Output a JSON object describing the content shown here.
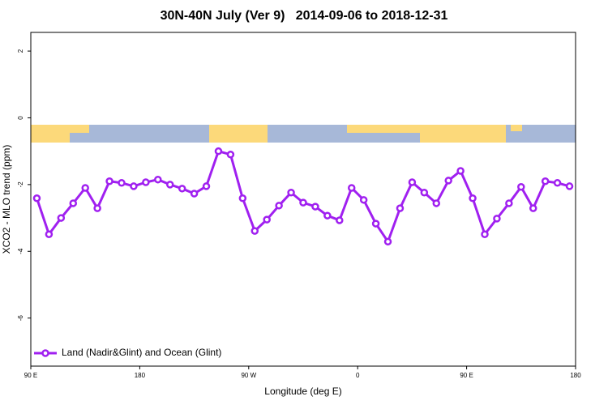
{
  "chart_data": {
    "type": "line",
    "title": "30N-40N July (Ver 9)   2014-09-06 to 2018-12-31",
    "x_label": "Longitude (deg E)",
    "y_label": "XCO2 - MLO trend (ppm)",
    "x": [
      95,
      105,
      115,
      125,
      135,
      145,
      155,
      165,
      175,
      185,
      195,
      205,
      215,
      225,
      235,
      245,
      255,
      265,
      275,
      285,
      295,
      305,
      315,
      325,
      335,
      345,
      355,
      365,
      375,
      385,
      395,
      405,
      415,
      425,
      435,
      445,
      455,
      465,
      475,
      485,
      495,
      505,
      515,
      525,
      535
    ],
    "series": [
      {
        "name": "Land (Nadir&Glint) and Ocean (Glint)",
        "color": "#a020f0",
        "values": [
          -2.41,
          -3.49,
          -3.0,
          -2.56,
          -2.1,
          -2.71,
          -1.9,
          -1.95,
          -2.05,
          -1.93,
          -1.85,
          -2.0,
          -2.12,
          -2.27,
          -2.05,
          -1.0,
          -1.1,
          -2.41,
          -3.39,
          -3.05,
          -2.63,
          -2.24,
          -2.54,
          -2.66,
          -2.93,
          -3.07,
          -2.1,
          -2.46,
          -3.17,
          -3.71,
          -2.71,
          -1.93,
          -2.24,
          -2.56,
          -1.88,
          -1.59,
          -2.41,
          -3.49,
          -3.02,
          -2.56,
          -2.07,
          -2.71,
          -1.9,
          -1.95,
          -2.05
        ]
      }
    ],
    "xlim": [
      90,
      540
    ],
    "xticks": [
      {
        "value": 90,
        "label": "90 E"
      },
      180,
      {
        "value": 270,
        "label": "90 W"
      },
      {
        "value": 360,
        "label": "0"
      },
      {
        "value": 450,
        "label": "90 E"
      },
      {
        "value": 540,
        "label": "180"
      }
    ],
    "ylim": [
      -7.44,
      2.56
    ],
    "yticks": [
      -6,
      -4,
      -2,
      0,
      2
    ],
    "legend": "bottom-left"
  }
}
